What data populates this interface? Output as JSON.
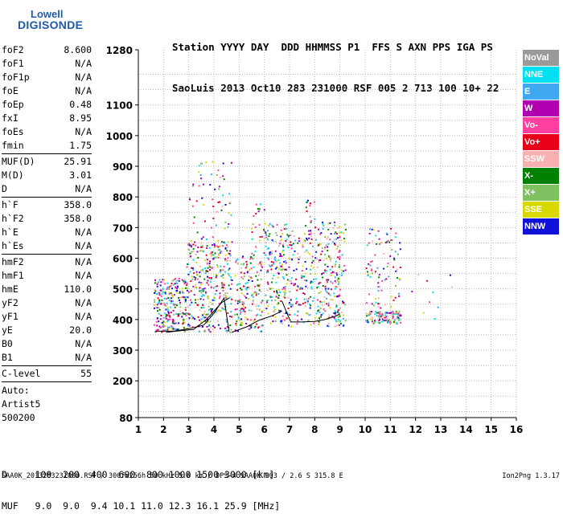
{
  "logo": {
    "line1": "Lowell",
    "line2": "DIGISONDE"
  },
  "header": {
    "line1": "Station YYYY DAY  DDD HHMMSS P1  FFS S AXN PPS IGA PS",
    "line2": "SaoLuis 2013 Oct10 283 231000 RSF 005 2 713 100 10+ 22"
  },
  "params": [
    {
      "k": "foF2",
      "v": "8.600"
    },
    {
      "k": "foF1",
      "v": "N/A"
    },
    {
      "k": "foF1p",
      "v": "N/A"
    },
    {
      "k": "foE",
      "v": "N/A"
    },
    {
      "k": "foEp",
      "v": "0.48"
    },
    {
      "k": "fxI",
      "v": "8.95"
    },
    {
      "k": "foEs",
      "v": "N/A"
    },
    {
      "k": "fmin",
      "v": "1.75"
    },
    {
      "sep": true
    },
    {
      "k": "MUF(D)",
      "v": "25.91"
    },
    {
      "k": "M(D)",
      "v": "3.01"
    },
    {
      "k": "D",
      "v": "N/A"
    },
    {
      "sep": true
    },
    {
      "k": "h`F",
      "v": "358.0"
    },
    {
      "k": "h`F2",
      "v": "358.0"
    },
    {
      "k": "h`E",
      "v": "N/A"
    },
    {
      "k": "h`Es",
      "v": "N/A"
    },
    {
      "sep": true
    },
    {
      "k": "hmF2",
      "v": "N/A"
    },
    {
      "k": "hmF1",
      "v": "N/A"
    },
    {
      "k": "hmE",
      "v": "110.0"
    },
    {
      "k": "yF2",
      "v": "N/A"
    },
    {
      "k": "yF1",
      "v": "N/A"
    },
    {
      "k": "yE",
      "v": "20.0"
    },
    {
      "k": "B0",
      "v": "N/A"
    },
    {
      "k": "B1",
      "v": "N/A"
    },
    {
      "sep": true
    },
    {
      "k": "C-level",
      "v": "55"
    },
    {
      "sep": true
    }
  ],
  "auto": {
    "l1": "Auto:",
    "l2": "Artist5",
    "l3": "500200"
  },
  "legend": [
    {
      "label": "NoVal",
      "color": "#9a9a9a"
    },
    {
      "label": "NNE",
      "color": "#00e0f0"
    },
    {
      "label": "E",
      "color": "#3fa8f0"
    },
    {
      "label": "W",
      "color": "#b000b0"
    },
    {
      "label": "Vo-",
      "color": "#ff40a0"
    },
    {
      "label": "Vo+",
      "color": "#e8001a"
    },
    {
      "label": "SSW",
      "color": "#f8b0b0"
    },
    {
      "label": "X-",
      "color": "#008000"
    },
    {
      "label": "X+",
      "color": "#80c060"
    },
    {
      "label": "SSE",
      "color": "#d8d800"
    },
    {
      "label": "NNW",
      "color": "#1010d8"
    }
  ],
  "dmuf": {
    "d": "D     100  200  400  600  800 1000 1500 3000 [km]",
    "muf": "MUF   9.0  9.0  9.4 10.1 11.0 12.3 16.1 25.9 [MHz]"
  },
  "footer": "SAA0K_2013283231000.RSF / 300fx256h 50 kHz 5.0 km / DPS-4 SAA0K 903 / 2.6 S 315.8 E",
  "version": "Ion2Png 1.3.17",
  "chart_data": {
    "type": "scatter",
    "xlim": [
      1,
      16
    ],
    "ylim": [
      80,
      1280
    ],
    "x_ticks": [
      1,
      2,
      3,
      4,
      5,
      6,
      7,
      8,
      9,
      10,
      11,
      12,
      13,
      14,
      15,
      16
    ],
    "y_ticks": [
      80,
      200,
      300,
      400,
      500,
      600,
      700,
      800,
      900,
      1000,
      1100,
      1280
    ],
    "grid": true,
    "trace_lines": [
      [
        [
          1.7,
          362
        ],
        [
          2.4,
          362
        ],
        [
          3.0,
          370
        ],
        [
          3.6,
          382
        ],
        [
          4.0,
          420
        ],
        [
          4.4,
          470
        ],
        [
          4.6,
          360
        ]
      ],
      [
        [
          2.1,
          358
        ],
        [
          2.5,
          362
        ],
        [
          3.2,
          368
        ],
        [
          3.7,
          400
        ],
        [
          4.3,
          455
        ],
        [
          4.6,
          470
        ]
      ],
      [
        [
          4.7,
          358
        ],
        [
          5.3,
          376
        ],
        [
          5.8,
          398
        ],
        [
          6.3,
          412
        ],
        [
          6.7,
          428
        ]
      ],
      [
        [
          6.7,
          460
        ],
        [
          6.9,
          420
        ],
        [
          7.05,
          392
        ],
        [
          7.5,
          392
        ],
        [
          8.0,
          394
        ],
        [
          8.4,
          400
        ],
        [
          8.8,
          410
        ],
        [
          9.0,
          418
        ]
      ]
    ],
    "point_clusters": [
      {
        "x": [
          1.6,
          2.9
        ],
        "y": [
          360,
          540
        ],
        "n": 240
      },
      {
        "x": [
          2.9,
          4.7
        ],
        "y": [
          360,
          660
        ],
        "n": 340
      },
      {
        "x": [
          3.0,
          4.7
        ],
        "y": [
          660,
          920
        ],
        "n": 60
      },
      {
        "x": [
          4.8,
          5.9
        ],
        "y": [
          360,
          620
        ],
        "n": 170
      },
      {
        "x": [
          5.4,
          6.0
        ],
        "y": [
          620,
          780
        ],
        "n": 25
      },
      {
        "x": [
          6.0,
          7.0
        ],
        "y": [
          380,
          720
        ],
        "n": 190
      },
      {
        "x": [
          7.0,
          8.0
        ],
        "y": [
          380,
          700
        ],
        "n": 130
      },
      {
        "x": [
          7.5,
          8.0
        ],
        "y": [
          700,
          800
        ],
        "n": 15
      },
      {
        "x": [
          8.0,
          9.2
        ],
        "y": [
          380,
          720
        ],
        "n": 220
      },
      {
        "x": [
          10.0,
          11.4
        ],
        "y": [
          390,
          430
        ],
        "n": 110
      },
      {
        "x": [
          10.0,
          11.4
        ],
        "y": [
          430,
          700
        ],
        "n": 90
      },
      {
        "x": [
          11.4,
          13.5
        ],
        "y": [
          400,
          560
        ],
        "n": 10
      }
    ]
  }
}
